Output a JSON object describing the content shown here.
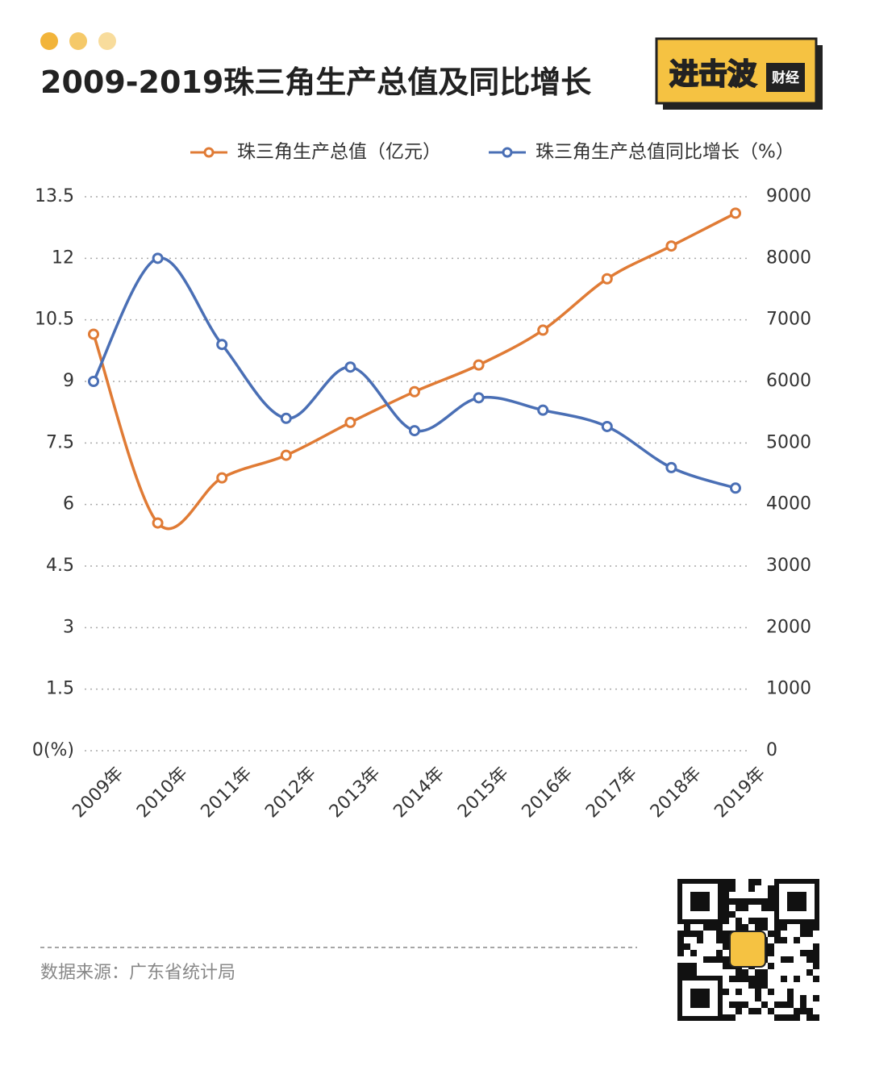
{
  "logo": {
    "name": "进击波",
    "sub": "财经"
  },
  "source": "数据来源：广东省统计局",
  "chart_data": {
    "type": "line",
    "title": "2009-2019珠三角生产总值及同比增长",
    "categories": [
      "2009年",
      "2010年",
      "2011年",
      "2012年",
      "2013年",
      "2014年",
      "2015年",
      "2016年",
      "2017年",
      "2018年",
      "2019年"
    ],
    "series": [
      {
        "name": "珠三角生产总值（亿元）",
        "color": "#e07b35",
        "axis": "y2",
        "values": [
          6767,
          3700,
          4433,
          4800,
          5333,
          5833,
          6267,
          6833,
          7667,
          8200,
          8733
        ]
      },
      {
        "name": "珠三角生产总值同比增长（%）",
        "color": "#4a6fb5",
        "values": [
          9,
          12,
          9.9,
          8.1,
          9.35,
          7.8,
          8.6,
          8.3,
          7.9,
          6.9,
          6.4
        ]
      }
    ],
    "ylim": [
      0,
      13.5
    ],
    "yticks": [
      {
        "value": 0,
        "label": "0(%)"
      },
      1.5,
      3,
      4.5,
      6,
      7.5,
      9,
      10.5,
      12,
      13.5
    ],
    "y2lim": [
      0,
      9000
    ],
    "y2ticks": [
      0,
      1000,
      2000,
      3000,
      4000,
      5000,
      6000,
      7000,
      8000,
      9000
    ],
    "grid": true,
    "smooth": true
  }
}
